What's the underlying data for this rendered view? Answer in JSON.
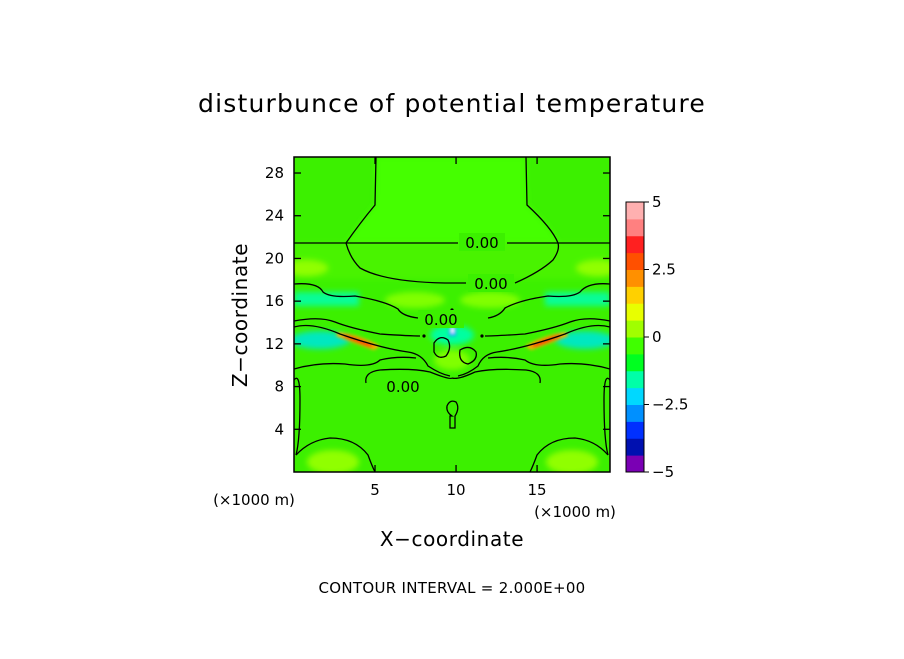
{
  "chart_data": {
    "type": "heatmap",
    "title": "disturbunce of potential temperature",
    "xlabel": "X−coordinate",
    "ylabel": "Z−coordinate",
    "x_unit": "(×1000 m)",
    "y_unit": "(×1000 m)",
    "xlim": [
      0,
      19.5
    ],
    "ylim": [
      0,
      29.5
    ],
    "x_ticks": [
      5,
      10,
      15
    ],
    "y_ticks": [
      4,
      8,
      12,
      16,
      20,
      24,
      28
    ],
    "contour_labels": [
      "0.00",
      "0.00",
      "0.00",
      "0.00"
    ],
    "footer": "CONTOUR INTERVAL = 2.000E+00",
    "colorbar": {
      "min": -5,
      "max": 5,
      "tick_labels": [
        "5",
        "2.5",
        "0",
        "−2.5",
        "−5"
      ],
      "tick_values": [
        5,
        2.5,
        0,
        -2.5,
        -5
      ],
      "colors": [
        "#7a00b4",
        "#0010b0",
        "#0030ff",
        "#0090ff",
        "#00d8ff",
        "#00ffa8",
        "#00ff20",
        "#40ff00",
        "#a0ff00",
        "#e8ff00",
        "#ffd000",
        "#ff9000",
        "#ff5000",
        "#ff2020",
        "#ff8080",
        "#ffb0b0"
      ]
    },
    "background_value_color": "#3cf000",
    "features": [
      {
        "name": "central top band",
        "x": [
          5,
          14.5
        ],
        "z": [
          21.7,
          29.5
        ],
        "value": 0.4,
        "color": "#40ff00"
      },
      {
        "name": "upper side bands",
        "z": [
          17.5,
          20.5
        ],
        "value": 1.0,
        "color": "#80ff00"
      },
      {
        "name": "negative layer",
        "z": [
          15.5,
          17
        ],
        "value": -1.2,
        "color": "#00ffa8"
      },
      {
        "name": "left warm streak",
        "x": [
          3.0,
          5.5
        ],
        "z": [
          12.0,
          13.2
        ],
        "value": 3.0,
        "color": "#ff7000"
      },
      {
        "name": "right warm streak",
        "x": [
          14.0,
          16.8
        ],
        "z": [
          12.0,
          13.2
        ],
        "value": 3.0,
        "color": "#ff7000"
      },
      {
        "name": "left cool band",
        "x": [
          0,
          4
        ],
        "z": [
          11.5,
          13
        ],
        "value": -1.2,
        "color": "#00e8c0"
      },
      {
        "name": "right cool band",
        "x": [
          15.5,
          19.5
        ],
        "z": [
          11.5,
          13
        ],
        "value": -1.2,
        "color": "#00e8c0"
      },
      {
        "name": "central cold spot",
        "x": [
          9.8,
          10.2
        ],
        "z": [
          13.2,
          14.5
        ],
        "value": -2.5,
        "color": "#00b0ff"
      },
      {
        "name": "bottom warm lobes",
        "z": [
          0,
          2
        ],
        "value": 1.0,
        "color": "#90ff00"
      }
    ]
  }
}
